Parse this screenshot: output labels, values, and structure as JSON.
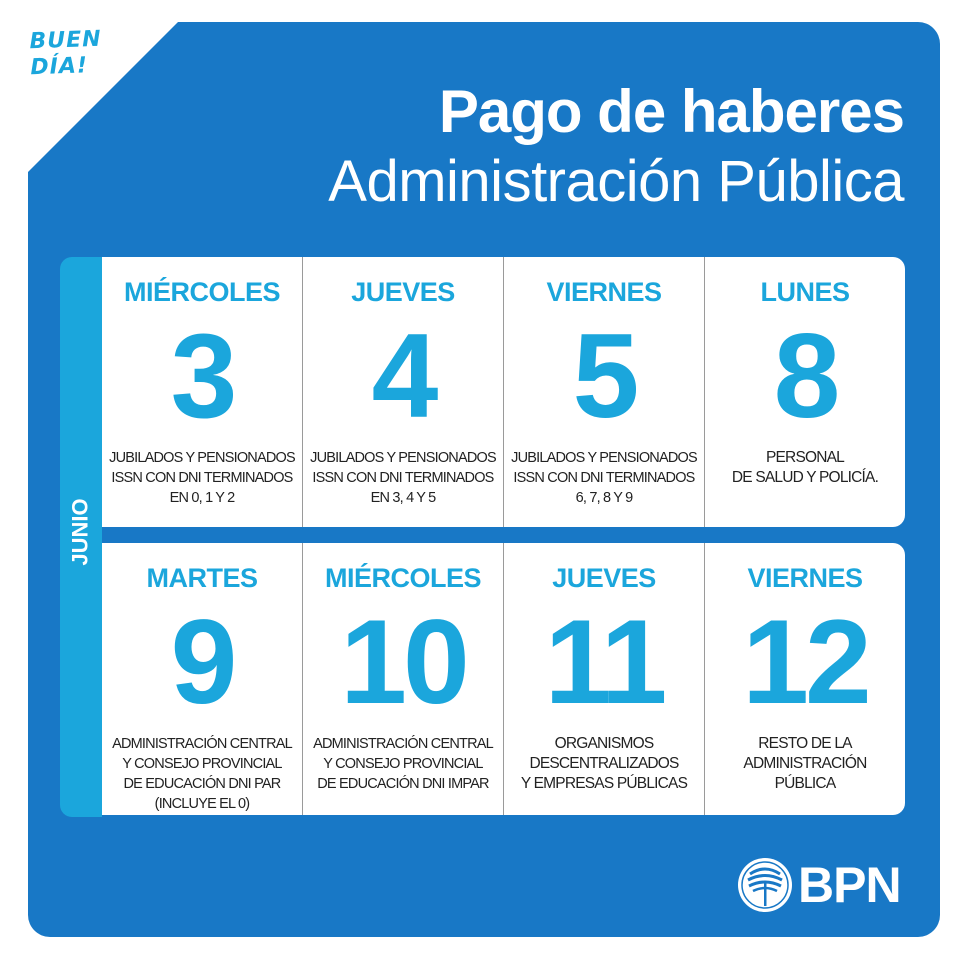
{
  "greeting": {
    "line1": "BUEN",
    "line2": "DÍA!"
  },
  "header": {
    "title": "Pago de haberes",
    "subtitle": "Administración Pública"
  },
  "month": "JUNIO",
  "rows": [
    [
      {
        "day": "MIÉRCOLES",
        "num": "3",
        "desc": [
          "JUBILADOS Y PENSIONADOS",
          "ISSN CON DNI TERMINADOS",
          "EN 0, 1 Y 2"
        ]
      },
      {
        "day": "JUEVES",
        "num": "4",
        "desc": [
          "JUBILADOS Y PENSIONADOS",
          "ISSN CON DNI TERMINADOS",
          "EN 3, 4 Y 5"
        ]
      },
      {
        "day": "VIERNES",
        "num": "5",
        "desc": [
          "JUBILADOS Y PENSIONADOS",
          "ISSN CON DNI TERMINADOS",
          "6, 7, 8 Y 9"
        ]
      },
      {
        "day": "LUNES",
        "num": "8",
        "desc": [
          "PERSONAL",
          "DE SALUD Y POLICÍA.",
          ""
        ]
      }
    ],
    [
      {
        "day": "MARTES",
        "num": "9",
        "desc": [
          "ADMINISTRACIÓN CENTRAL",
          "Y CONSEJO PROVINCIAL",
          "DE EDUCACIÓN DNI PAR",
          "(INCLUYE EL 0)"
        ]
      },
      {
        "day": "MIÉRCOLES",
        "num": "10",
        "desc": [
          "ADMINISTRACIÓN CENTRAL",
          "Y CONSEJO PROVINCIAL",
          "DE EDUCACIÓN DNI IMPAR",
          ""
        ]
      },
      {
        "day": "JUEVES",
        "num": "11",
        "desc": [
          "ORGANISMOS",
          "DESCENTRALIZADOS",
          "Y EMPRESAS PÚBLICAS",
          ""
        ]
      },
      {
        "day": "VIERNES",
        "num": "12",
        "desc": [
          "RESTO DE LA",
          "ADMINISTRACIÓN",
          "PÚBLICA",
          ""
        ]
      }
    ]
  ],
  "logo": {
    "text": "BPN",
    "icon": "araucaria-tree-icon"
  },
  "colors": {
    "panel": "#1878c6",
    "accent": "#1ba6dc",
    "text": "#222222"
  }
}
